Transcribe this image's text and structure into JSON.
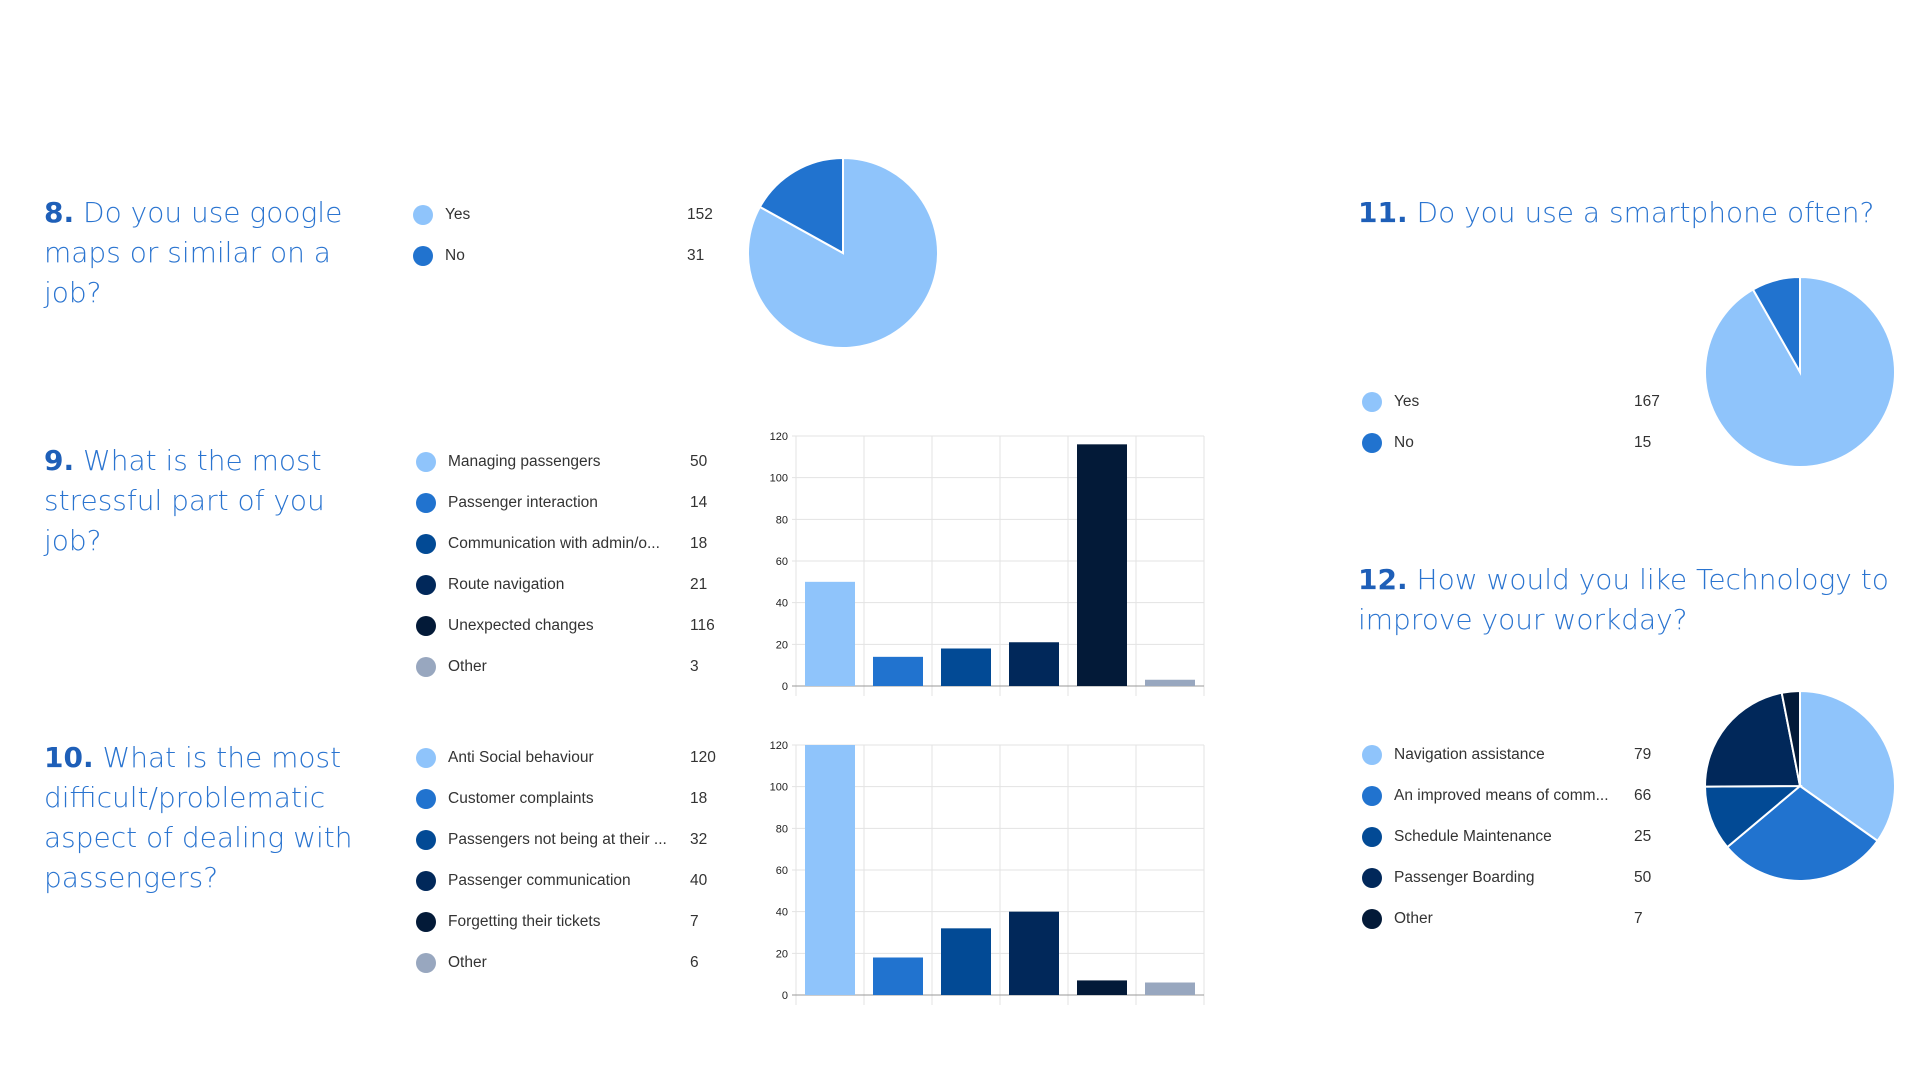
{
  "questions": [
    {
      "num": "8.",
      "text": "Do you use google maps or similar on a job?",
      "lines": [
        "Do you use google",
        "maps or similar on a job?"
      ]
    },
    {
      "num": "9.",
      "text": "What is the most stressful part of you job?",
      "lines": [
        "What is the most",
        "stressful part of you job?"
      ]
    },
    {
      "num": "10.",
      "text": "What is the most difficult/problematic aspect of dealing with passengers?",
      "lines": [
        "What is the most",
        "difficult/problematic",
        "aspect of dealing with",
        "passengers?"
      ]
    },
    {
      "num": "11.",
      "text": "Do you use a smartphone often?",
      "lines": [
        "Do you use a smartphone often?"
      ]
    },
    {
      "num": "12.",
      "text": "How would you like Technology to improve your workday?",
      "lines": [
        "How would you like Technology to",
        "improve your workday?"
      ]
    }
  ],
  "chart_data": [
    {
      "id": "q8",
      "type": "pie",
      "categories": [
        "Yes",
        "No"
      ],
      "values": [
        152,
        31
      ],
      "colors": [
        "#8fc4fb",
        "#2173cf"
      ]
    },
    {
      "id": "q9",
      "type": "bar",
      "categories": [
        "Managing passengers",
        "Passenger interaction",
        "Communication with admin/o...",
        "Route navigation",
        "Unexpected changes",
        "Other"
      ],
      "values": [
        50,
        14,
        18,
        21,
        116,
        3
      ],
      "colors": [
        "#8fc4fb",
        "#2173cf",
        "#024a95",
        "#01285a",
        "#031a38",
        "#98a7bf"
      ],
      "ylim": [
        0,
        120
      ],
      "yticks": [
        0,
        20,
        40,
        60,
        80,
        100,
        120
      ],
      "grid": true
    },
    {
      "id": "q10",
      "type": "bar",
      "categories": [
        "Anti Social behaviour",
        "Customer complaints",
        "Passengers not being at their ...",
        "Passenger communication",
        "Forgetting their tickets",
        "Other"
      ],
      "values": [
        120,
        18,
        32,
        40,
        7,
        6
      ],
      "colors": [
        "#8fc4fb",
        "#2173cf",
        "#024a95",
        "#01285a",
        "#031a38",
        "#98a7bf"
      ],
      "ylim": [
        0,
        120
      ],
      "yticks": [
        0,
        20,
        40,
        60,
        80,
        100,
        120
      ],
      "grid": true
    },
    {
      "id": "q11",
      "type": "pie",
      "categories": [
        "Yes",
        "No"
      ],
      "values": [
        167,
        15
      ],
      "colors": [
        "#8fc4fb",
        "#2173cf"
      ]
    },
    {
      "id": "q12",
      "type": "pie",
      "categories": [
        "Navigation assistance",
        "An improved means of comm...",
        "Schedule Maintenance",
        "Passenger Boarding",
        "Other"
      ],
      "values": [
        79,
        66,
        25,
        50,
        7
      ],
      "colors": [
        "#8fc4fb",
        "#2173cf",
        "#024a95",
        "#01285a",
        "#031a38"
      ]
    }
  ]
}
